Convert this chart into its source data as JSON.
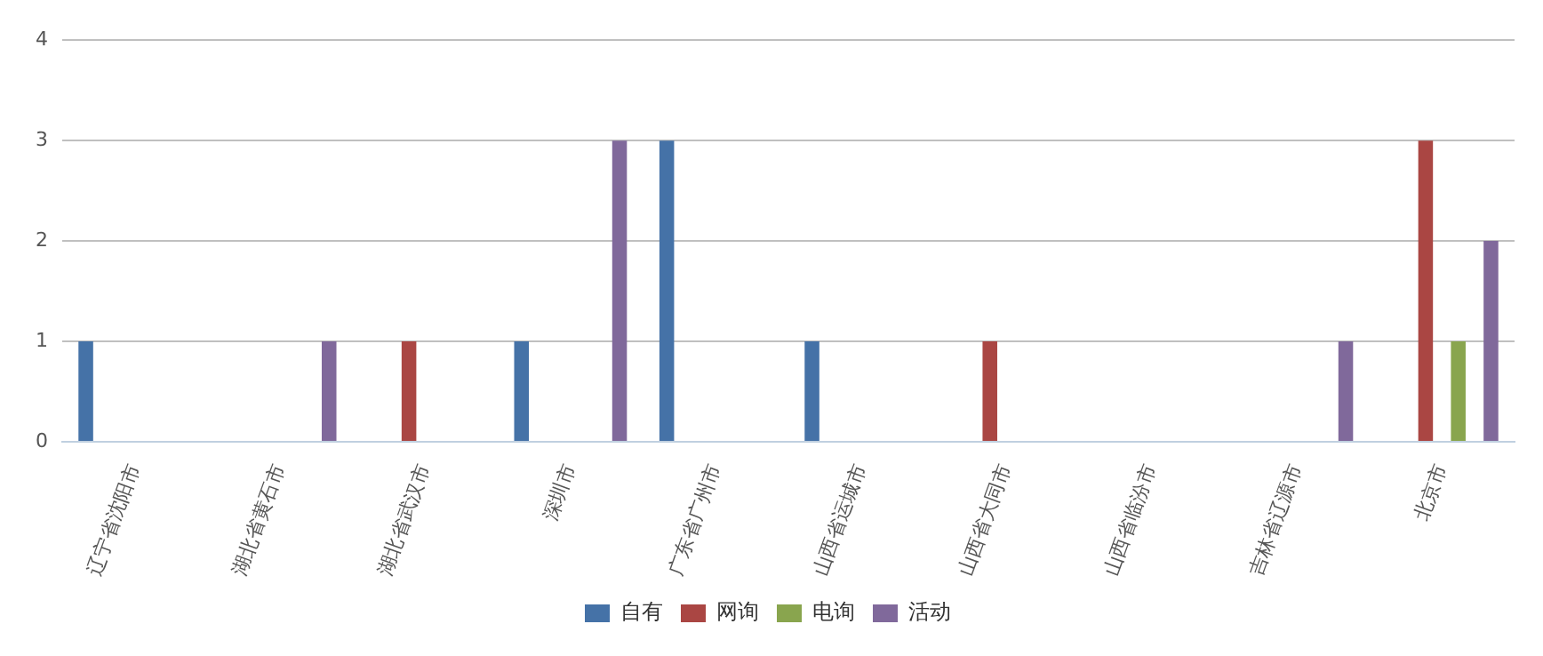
{
  "chart_data": {
    "type": "bar",
    "categories": [
      "辽宁省沈阳市",
      "湖北省黄石市",
      "湖北省武汉市",
      "深圳市",
      "广东省广州市",
      "山西省运城市",
      "山西省大同市",
      "山西省临汾市",
      "吉林省辽源市",
      "北京市"
    ],
    "series": [
      {
        "name": "自有",
        "color": "#4572a7",
        "values": [
          1,
          null,
          null,
          1,
          3,
          1,
          null,
          null,
          null,
          null
        ]
      },
      {
        "name": "网询",
        "color": "#aa4643",
        "values": [
          null,
          null,
          1,
          null,
          null,
          null,
          1,
          null,
          null,
          3
        ]
      },
      {
        "name": "电询",
        "color": "#89a54e",
        "values": [
          null,
          null,
          null,
          null,
          null,
          null,
          null,
          null,
          null,
          1
        ]
      },
      {
        "name": "活动",
        "color": "#80699b",
        "values": [
          null,
          1,
          null,
          3,
          null,
          null,
          null,
          null,
          1,
          2
        ]
      }
    ],
    "ylim": [
      0,
      4
    ],
    "yticks": [
      0,
      1,
      2,
      3,
      4
    ],
    "grid": "y",
    "legend": "bottom"
  }
}
